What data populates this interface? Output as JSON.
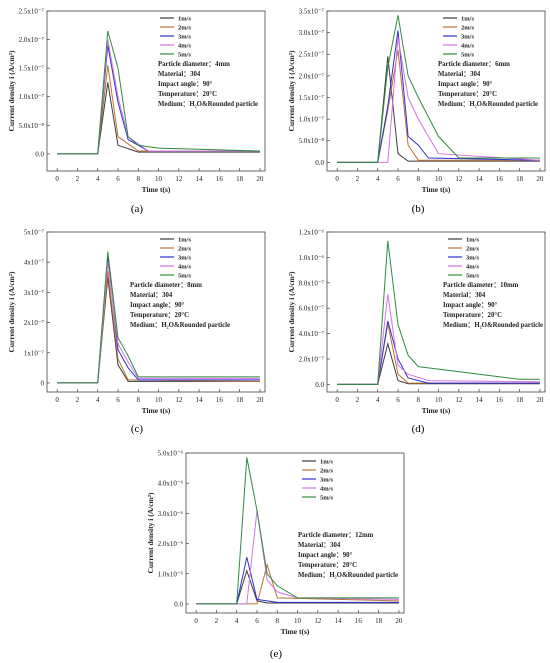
{
  "figure_caption_labels": [
    "(a)",
    "(b)",
    "(c)",
    "(d)",
    "(e)"
  ],
  "series_colors": [
    "#3b3b3b",
    "#b87333",
    "#2f2fd6",
    "#d672e6",
    "#2e8b3e"
  ],
  "chart_data": [
    {
      "type": "line",
      "panel": "(a)",
      "xlabel": "Time t(s)",
      "ylabel": "Current density i (A/cm²)",
      "xlim": [
        -1,
        20.5
      ],
      "ylim": [
        -3e-08,
        2.5e-07
      ],
      "xticks": [
        "0",
        "2",
        "4",
        "6",
        "8",
        "10",
        "12",
        "14",
        "16",
        "18",
        "20"
      ],
      "yticks": [
        "0.0",
        "5.0x10⁻⁸",
        "1.0x10⁻⁷",
        "1.5x10⁻⁷",
        "2.0x10⁻⁷",
        "2.5x10⁻⁷"
      ],
      "info": [
        "Particle diameter：4mm",
        "Material：304",
        "Impact angle：90°",
        "Temperature：20°C",
        "Medium：H₂O&Rounded particle"
      ],
      "series": [
        {
          "name": "1m/s",
          "x": [
            0,
            4,
            5,
            6,
            8,
            20
          ],
          "y": [
            0,
            0,
            1.25e-07,
            1.5e-08,
            3e-09,
            3e-09
          ]
        },
        {
          "name": "2m/s",
          "x": [
            0,
            4,
            5,
            6,
            8,
            20
          ],
          "y": [
            0,
            0,
            1.55e-07,
            3e-08,
            5e-09,
            5e-09
          ]
        },
        {
          "name": "3m/s",
          "x": [
            0,
            4,
            5,
            6,
            7,
            9,
            20
          ],
          "y": [
            0,
            0,
            1.9e-07,
            9e-08,
            2.5e-08,
            5e-09,
            5e-09
          ]
        },
        {
          "name": "4m/s",
          "x": [
            0,
            4,
            5,
            6,
            7,
            9,
            20
          ],
          "y": [
            0,
            0,
            2e-07,
            1e-07,
            3e-08,
            5e-09,
            5e-09
          ]
        },
        {
          "name": "5m/s",
          "x": [
            0,
            4,
            5,
            6,
            7,
            8,
            10,
            20
          ],
          "y": [
            0,
            0,
            2.15e-07,
            1.5e-07,
            3e-08,
            1.5e-08,
            1e-08,
            5e-09
          ]
        }
      ]
    },
    {
      "type": "line",
      "panel": "(b)",
      "xlabel": "Time t(s)",
      "ylabel": "Current density i (A/cm²)",
      "xlim": [
        -1,
        20.5
      ],
      "ylim": [
        -2e-08,
        3.5e-07
      ],
      "xticks": [
        "0",
        "2",
        "4",
        "6",
        "8",
        "10",
        "12",
        "14",
        "16",
        "18",
        "20"
      ],
      "yticks": [
        "0.0",
        "5.0x10⁻⁸",
        "1.0x10⁻⁷",
        "1.5x10⁻⁷",
        "2.0x10⁻⁷",
        "2.5x10⁻⁷",
        "3.0x10⁻⁷",
        "3.5x10⁻⁷"
      ],
      "info": [
        "Particle diameter：6mm",
        "Material：304",
        "Impact angle：90°",
        "Temperature：20°C",
        "Medium：H₂O&Rounded particle"
      ],
      "series": [
        {
          "name": "1m/s",
          "x": [
            0,
            4,
            5,
            6,
            7,
            20
          ],
          "y": [
            0,
            0,
            2.45e-07,
            2e-08,
            3e-09,
            3e-09
          ]
        },
        {
          "name": "2m/s",
          "x": [
            0,
            4,
            5,
            6,
            7,
            8,
            20
          ],
          "y": [
            0,
            0,
            1.2e-07,
            2.6e-07,
            4e-08,
            5e-09,
            5e-09
          ]
        },
        {
          "name": "3m/s",
          "x": [
            0,
            4,
            5,
            6,
            7,
            8,
            9,
            20
          ],
          "y": [
            0,
            0,
            1.3e-07,
            3.05e-07,
            6e-08,
            4e-08,
            1e-08,
            5e-09
          ]
        },
        {
          "name": "4m/s",
          "x": [
            0,
            5,
            6,
            7,
            8,
            10,
            20
          ],
          "y": [
            0,
            0,
            2.9e-07,
            1.5e-07,
            1e-07,
            2e-08,
            5e-09
          ]
        },
        {
          "name": "5m/s",
          "x": [
            0,
            4,
            5,
            6,
            7,
            8,
            10,
            12,
            20
          ],
          "y": [
            0,
            0,
            2.2e-07,
            3.4e-07,
            2e-07,
            1.5e-07,
            6e-08,
            1e-08,
            1e-08
          ]
        }
      ]
    },
    {
      "type": "line",
      "panel": "(c)",
      "xlabel": "Time t(s)",
      "ylabel": "Current density i (A/cm²)",
      "xlim": [
        -1,
        20.5
      ],
      "ylim": [
        -3e-08,
        5e-07
      ],
      "xticks": [
        "0",
        "2",
        "4",
        "6",
        "8",
        "10",
        "12",
        "14",
        "16",
        "18",
        "20"
      ],
      "yticks": [
        "0",
        "1x10⁻⁷",
        "2x10⁻⁷",
        "3x10⁻⁷",
        "4x10⁻⁷",
        "5x10⁻⁷"
      ],
      "info": [
        "Particle diameter：8mm",
        "Material：304",
        "Impact angle：90°",
        "Temperature：20°C",
        "Medium：H₂O&Rounded particle"
      ],
      "series": [
        {
          "name": "1m/s",
          "x": [
            0,
            4,
            5,
            6,
            7,
            20
          ],
          "y": [
            0,
            0,
            3.5e-07,
            6e-08,
            5e-09,
            5e-09
          ]
        },
        {
          "name": "2m/s",
          "x": [
            0,
            4,
            5,
            6,
            7,
            20
          ],
          "y": [
            0,
            0,
            3.7e-07,
            8e-08,
            1e-08,
            5e-09
          ]
        },
        {
          "name": "3m/s",
          "x": [
            0,
            4,
            5,
            6,
            7,
            8,
            20
          ],
          "y": [
            0,
            0,
            4.2e-07,
            1.1e-07,
            5e-08,
            1e-08,
            1e-08
          ]
        },
        {
          "name": "4m/s",
          "x": [
            0,
            4,
            5,
            6,
            7,
            8,
            20
          ],
          "y": [
            0,
            0,
            4e-07,
            1.3e-07,
            7e-08,
            1.5e-08,
            1.5e-08
          ]
        },
        {
          "name": "5m/s",
          "x": [
            0,
            4,
            5,
            6,
            7,
            8,
            20
          ],
          "y": [
            0,
            0,
            4.35e-07,
            1.5e-07,
            9e-08,
            2e-08,
            2e-08
          ]
        }
      ]
    },
    {
      "type": "line",
      "panel": "(d)",
      "xlabel": "Time t(s)",
      "ylabel": "Current density i (A/cm²)",
      "xlim": [
        -1,
        20.5
      ],
      "ylim": [
        -6e-08,
        1.2e-06
      ],
      "xticks": [
        "0",
        "2",
        "4",
        "6",
        "8",
        "10",
        "12",
        "14",
        "16",
        "18",
        "20"
      ],
      "yticks": [
        "0.0",
        "2.0x10⁻⁷",
        "4.0x10⁻⁷",
        "6.0x10⁻⁷",
        "8.0x10⁻⁷",
        "1.0x10⁻⁶",
        "1.2x10⁻⁶"
      ],
      "info": [
        "Particle diameter：10mm",
        "Material：304",
        "Impact angle：90°",
        "Temperature：20°C",
        "Medium：H₂O&Rounded particle"
      ],
      "series": [
        {
          "name": "1m/s",
          "x": [
            0,
            4,
            5,
            6,
            7,
            20
          ],
          "y": [
            0,
            0,
            3.2e-07,
            3e-08,
            5e-09,
            5e-09
          ]
        },
        {
          "name": "2m/s",
          "x": [
            0,
            4,
            5,
            6,
            7,
            20
          ],
          "y": [
            0,
            0,
            4.8e-07,
            8e-08,
            1e-08,
            1e-08
          ]
        },
        {
          "name": "3m/s",
          "x": [
            0,
            4,
            5,
            6,
            7,
            9,
            20
          ],
          "y": [
            0,
            0,
            5e-07,
            2e-07,
            5e-08,
            1e-08,
            1e-08
          ]
        },
        {
          "name": "4m/s",
          "x": [
            0,
            4,
            5,
            6,
            7,
            9,
            20
          ],
          "y": [
            0,
            0,
            7.1e-07,
            1.5e-07,
            8e-08,
            3e-08,
            2e-08
          ]
        },
        {
          "name": "5m/s",
          "x": [
            0,
            4,
            5,
            6,
            7,
            8,
            10,
            14,
            18,
            20
          ],
          "y": [
            0,
            0,
            1.13e-06,
            4.7e-07,
            2.3e-07,
            1.4e-07,
            1.2e-07,
            8e-08,
            4e-08,
            4e-08
          ]
        }
      ]
    },
    {
      "type": "line",
      "panel": "(e)",
      "xlabel": "Time t(s)",
      "ylabel": "Current density i (A/cm²)",
      "xlim": [
        -1,
        20.5
      ],
      "ylim": [
        -3e-07,
        5e-06
      ],
      "xticks": [
        "0",
        "2",
        "4",
        "6",
        "8",
        "10",
        "12",
        "14",
        "16",
        "18",
        "20"
      ],
      "yticks": [
        "0.0",
        "1.0x10⁻⁶",
        "2.0x10⁻⁶",
        "3.0x10⁻⁶",
        "4.0x10⁻⁶",
        "5.0x10⁻⁶"
      ],
      "info": [
        "Particle diameter：12mm",
        "Material：304",
        "Impact angle：90°",
        "Temperature：20°C",
        "Medium：H₂O&Rounded particle"
      ],
      "series": [
        {
          "name": "1m/s",
          "x": [
            0,
            4,
            5,
            6,
            7,
            20
          ],
          "y": [
            0,
            0,
            1.1e-06,
            1e-07,
            3e-08,
            3e-08
          ]
        },
        {
          "name": "2m/s",
          "x": [
            0,
            6,
            7,
            8,
            20
          ],
          "y": [
            0,
            0,
            1.3e-06,
            2e-07,
            1e-07
          ]
        },
        {
          "name": "3m/s",
          "x": [
            0,
            4,
            5,
            6,
            8,
            20
          ],
          "y": [
            0,
            0,
            1.55e-06,
            1.5e-07,
            5e-08,
            5e-08
          ]
        },
        {
          "name": "4m/s",
          "x": [
            0,
            5,
            6,
            7,
            8,
            10,
            20
          ],
          "y": [
            0,
            0,
            3.1e-06,
            8e-07,
            4e-07,
            2e-07,
            1.5e-07
          ]
        },
        {
          "name": "5m/s",
          "x": [
            0,
            4,
            5,
            6,
            7,
            8,
            10,
            20
          ],
          "y": [
            0,
            0,
            4.85e-06,
            3.1e-06,
            1e-06,
            6e-07,
            2e-07,
            2e-07
          ]
        }
      ]
    }
  ]
}
